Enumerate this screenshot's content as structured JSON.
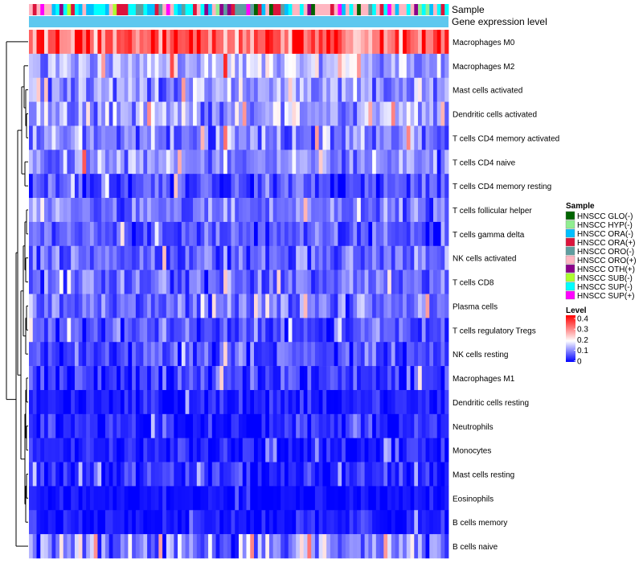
{
  "chart_data": {
    "type": "heatmap",
    "title": "",
    "top_annotation_labels": [
      "Sample",
      "Gene expression level"
    ],
    "rows": [
      {
        "label": "Macrophages M0",
        "mean": 0.31,
        "spread": 0.09
      },
      {
        "label": "Macrophages M2",
        "mean": 0.13,
        "spread": 0.06
      },
      {
        "label": "Mast cells activated",
        "mean": 0.11,
        "spread": 0.06
      },
      {
        "label": "Dendritic cells activated",
        "mean": 0.12,
        "spread": 0.06
      },
      {
        "label": "T cells CD4 memory activated",
        "mean": 0.09,
        "spread": 0.06
      },
      {
        "label": "T cells CD4 naive",
        "mean": 0.1,
        "spread": 0.06
      },
      {
        "label": "T cells CD4 memory resting",
        "mean": 0.05,
        "spread": 0.05
      },
      {
        "label": "T cells follicular helper",
        "mean": 0.08,
        "spread": 0.05
      },
      {
        "label": "T cells gamma delta",
        "mean": 0.06,
        "spread": 0.05
      },
      {
        "label": "NK cells activated",
        "mean": 0.07,
        "spread": 0.05
      },
      {
        "label": "T cells CD8",
        "mean": 0.07,
        "spread": 0.05
      },
      {
        "label": "Plasma cells",
        "mean": 0.08,
        "spread": 0.05
      },
      {
        "label": "T cells regulatory  Tregs",
        "mean": 0.06,
        "spread": 0.05
      },
      {
        "label": "NK cells resting",
        "mean": 0.05,
        "spread": 0.05
      },
      {
        "label": "Macrophages M1",
        "mean": 0.04,
        "spread": 0.05
      },
      {
        "label": "Dendritic cells resting",
        "mean": 0.02,
        "spread": 0.03
      },
      {
        "label": "Neutrophils",
        "mean": 0.03,
        "spread": 0.04
      },
      {
        "label": "Monocytes",
        "mean": 0.02,
        "spread": 0.03
      },
      {
        "label": "Mast cells resting",
        "mean": 0.03,
        "spread": 0.04
      },
      {
        "label": "Eosinophils",
        "mean": 0.01,
        "spread": 0.02
      },
      {
        "label": "B cells memory",
        "mean": 0.02,
        "spread": 0.03
      },
      {
        "label": "B cells naive",
        "mean": 0.1,
        "spread": 0.08
      }
    ],
    "n_samples": 110,
    "color_scale": {
      "title": "Level",
      "min": 0,
      "max": 0.4,
      "ticks": [
        "0.4",
        "0.3",
        "0.2",
        "0.1",
        "0"
      ],
      "low_color": "#0000ff",
      "mid_color": "#ffffff",
      "high_color": "#ff0000",
      "mid_value": 0.18
    },
    "expression_bar_color": "#5ec8ef",
    "sample_legend": {
      "title": "Sample",
      "items": [
        {
          "label": "HNSCC GLO(-)",
          "color": "#006400"
        },
        {
          "label": "HNSCC HYP(-)",
          "color": "#90ee90"
        },
        {
          "label": "HNSCC ORA(-)",
          "color": "#00bfff"
        },
        {
          "label": "HNSCC ORA(+)",
          "color": "#dc143c"
        },
        {
          "label": "HNSCC ORO(-)",
          "color": "#5f9ea0"
        },
        {
          "label": "HNSCC ORO(+)",
          "color": "#ffb6c1"
        },
        {
          "label": "HNSCC OTH(+)",
          "color": "#8b008b"
        },
        {
          "label": "HNSCC SUB(-)",
          "color": "#adff2f"
        },
        {
          "label": "HNSCC SUP(-)",
          "color": "#00ffff"
        },
        {
          "label": "HNSCC SUP(+)",
          "color": "#ff00ff"
        }
      ]
    },
    "row_clustering": "dendrogram-left"
  }
}
